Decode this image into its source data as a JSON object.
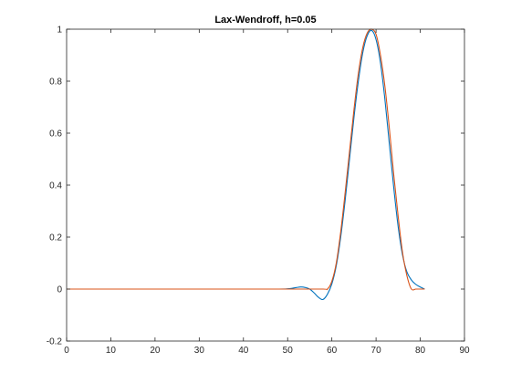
{
  "chart_data": {
    "type": "line",
    "title": "Lax-Wendroff, h=0.05",
    "xlabel": "",
    "ylabel": "",
    "xlim": [
      0,
      90
    ],
    "ylim": [
      -0.2,
      1
    ],
    "x_ticks": [
      0,
      10,
      20,
      30,
      40,
      50,
      60,
      70,
      80,
      90
    ],
    "x_tick_labels": [
      "0",
      "10",
      "20",
      "30",
      "40",
      "50",
      "60",
      "70",
      "80",
      "90"
    ],
    "y_ticks": [
      -0.2,
      0,
      0.2,
      0.4,
      0.6,
      0.8,
      1
    ],
    "y_tick_labels": [
      "-0.2",
      "0",
      "0.2",
      "0.4",
      "0.6",
      "0.8",
      "1"
    ],
    "grid": false,
    "box": true,
    "series": [
      {
        "color": "#0072BD",
        "x": [
          0,
          10,
          20,
          30,
          40,
          48,
          50,
          51,
          52,
          53,
          54,
          55,
          56,
          57,
          58,
          59,
          60,
          61,
          62,
          63,
          64,
          65,
          66,
          67,
          68,
          69,
          70,
          71,
          72,
          73,
          74,
          75,
          76,
          77,
          78,
          79,
          80,
          81
        ],
        "y": [
          0,
          0,
          0,
          0,
          0,
          0,
          0.001,
          0.003,
          0.006,
          0.008,
          0.006,
          0.0,
          -0.015,
          -0.032,
          -0.04,
          -0.02,
          0.02,
          0.09,
          0.2,
          0.34,
          0.5,
          0.66,
          0.8,
          0.91,
          0.975,
          0.995,
          0.96,
          0.87,
          0.73,
          0.56,
          0.39,
          0.24,
          0.13,
          0.065,
          0.035,
          0.018,
          0.008,
          0.0
        ]
      },
      {
        "color": "#D95319",
        "x": [
          0,
          10,
          20,
          30,
          40,
          50,
          58,
          59,
          60,
          61,
          62,
          63,
          64,
          65,
          66,
          67,
          68,
          69,
          70,
          71,
          72,
          73,
          74,
          75,
          76,
          77,
          78,
          79,
          80,
          81
        ],
        "y": [
          0,
          0,
          0,
          0,
          0,
          0,
          0,
          0.0,
          0.03,
          0.1,
          0.22,
          0.37,
          0.53,
          0.69,
          0.83,
          0.93,
          0.985,
          1.0,
          0.98,
          0.9,
          0.78,
          0.62,
          0.44,
          0.28,
          0.14,
          0.05,
          0.0,
          0,
          0,
          0
        ]
      }
    ]
  }
}
